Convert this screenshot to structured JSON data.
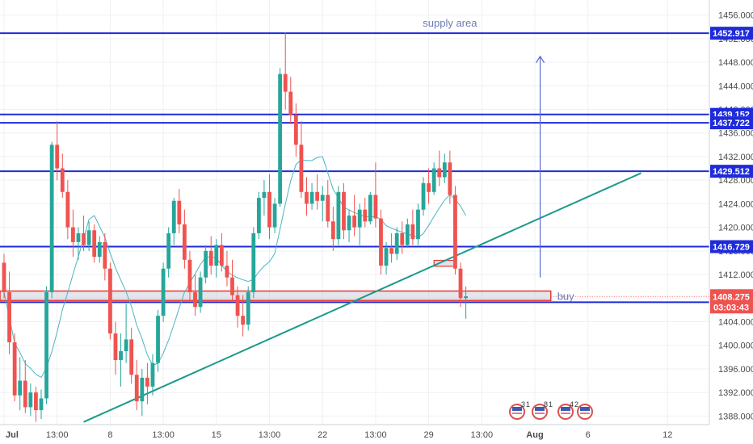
{
  "chart_data": {
    "type": "candlestick",
    "symbol_note": "",
    "y_axis": {
      "min": 1386.0,
      "max": 1458.0,
      "ticks": [
        1388.0,
        1392.0,
        1396.0,
        1400.0,
        1404.0,
        1408.0,
        1412.0,
        1416.0,
        1420.0,
        1424.0,
        1428.0,
        1432.0,
        1436.0,
        1440.0,
        1444.0,
        1448.0,
        1452.0,
        1456.0
      ],
      "tick_labels": [
        "1388.000",
        "1392.000",
        "1396.000",
        "1400.000",
        "1404.000",
        "1408.000",
        "1412.000",
        "1416.000",
        "1420.000",
        "1424.000",
        "1428.000",
        "1432.000",
        "1436.000",
        "1440.000",
        "1444.000",
        "1448.000",
        "1452.000",
        "1456.000"
      ]
    },
    "x_axis": {
      "labels": [
        "Jul",
        "13:00",
        "8",
        "13:00",
        "15",
        "13:00",
        "22",
        "13:00",
        "29",
        "13:00",
        "Aug",
        "6",
        "12"
      ],
      "bold_labels": [
        "Jul",
        "Aug"
      ],
      "bar_index": [
        0,
        10,
        20,
        30,
        40,
        50,
        60,
        70,
        80,
        90,
        100,
        110,
        125
      ]
    },
    "horizontal_levels": [
      {
        "price": 1452.917,
        "label": "1452.917",
        "color": "#1f2bd9"
      },
      {
        "price": 1439.152,
        "label": "1439.152",
        "color": "#1f2bd9"
      },
      {
        "price": 1437.722,
        "label": "1437.722",
        "color": "#1f2bd9"
      },
      {
        "price": 1429.512,
        "label": "1429.512",
        "color": "#1f2bd9"
      },
      {
        "price": 1416.729,
        "label": "1416.729",
        "color": "#1f2bd9"
      },
      {
        "price": 1407.298,
        "label": "1407.298",
        "color": "#1f2bd9"
      }
    ],
    "current_price": {
      "price": 1408.275,
      "label": "1408.275",
      "countdown": "03:03:43",
      "color": "#ef5350"
    },
    "annotations": {
      "supply_area": "supply area",
      "buy": "buy"
    },
    "trendline": {
      "from": {
        "bar": 15,
        "price": 1387.0
      },
      "to": {
        "bar": 120,
        "price": 1429.2
      },
      "color": "#1b9a8a"
    },
    "arrow": {
      "bar": 101,
      "from_price": 1411.5,
      "to_price": 1449.0,
      "color": "#5a6ccf"
    },
    "buy_zone": {
      "from_bar": 0,
      "to_bar": 103,
      "top": 1409.2,
      "bottom": 1407.6,
      "color": "#e53935"
    },
    "small_zone": {
      "from_bar": 81,
      "to_bar": 85,
      "top": 1414.4,
      "bottom": 1413.4
    },
    "event_badges": [
      "3",
      "1",
      "8",
      "1",
      "4",
      "2"
    ],
    "colors": {
      "up": "#26a69a",
      "down": "#ef5350",
      "ma": "#4ab5c4",
      "level": "#1f2bd9"
    },
    "candles": [
      [
        1414.0,
        1415.5,
        1408.0,
        1409.0
      ],
      [
        1409.0,
        1412.5,
        1398.5,
        1400.5
      ],
      [
        1400.5,
        1402.0,
        1390.5,
        1391.5
      ],
      [
        1391.5,
        1398.0,
        1389.0,
        1394.0
      ],
      [
        1394.0,
        1397.5,
        1388.5,
        1389.5
      ],
      [
        1389.5,
        1393.5,
        1388.0,
        1392.0
      ],
      [
        1392.0,
        1393.0,
        1387.0,
        1389.0
      ],
      [
        1389.0,
        1392.5,
        1387.5,
        1391.0
      ],
      [
        1391.0,
        1410.0,
        1390.0,
        1409.0
      ],
      [
        1409.0,
        1434.5,
        1408.0,
        1434.0
      ],
      [
        1434.0,
        1438.0,
        1428.0,
        1430.0
      ],
      [
        1430.0,
        1432.5,
        1425.0,
        1426.0
      ],
      [
        1426.0,
        1428.0,
        1418.0,
        1420.0
      ],
      [
        1420.0,
        1423.0,
        1415.0,
        1417.5
      ],
      [
        1417.5,
        1420.0,
        1414.5,
        1419.0
      ],
      [
        1419.0,
        1422.0,
        1416.0,
        1417.0
      ],
      [
        1417.0,
        1421.0,
        1416.0,
        1419.5
      ],
      [
        1419.5,
        1420.5,
        1414.0,
        1415.0
      ],
      [
        1415.0,
        1418.5,
        1414.0,
        1417.5
      ],
      [
        1417.5,
        1419.0,
        1411.0,
        1413.0
      ],
      [
        1413.0,
        1414.0,
        1401.0,
        1402.0
      ],
      [
        1402.0,
        1404.0,
        1395.0,
        1397.5
      ],
      [
        1397.5,
        1402.0,
        1393.0,
        1399.0
      ],
      [
        1399.0,
        1407.0,
        1397.0,
        1401.0
      ],
      [
        1401.0,
        1403.0,
        1393.5,
        1395.0
      ],
      [
        1395.0,
        1397.5,
        1389.0,
        1390.5
      ],
      [
        1390.5,
        1396.0,
        1388.0,
        1394.5
      ],
      [
        1394.5,
        1397.0,
        1390.0,
        1393.0
      ],
      [
        1393.0,
        1398.5,
        1391.5,
        1397.0
      ],
      [
        1397.0,
        1406.0,
        1395.5,
        1405.0
      ],
      [
        1405.0,
        1414.0,
        1404.0,
        1413.0
      ],
      [
        1413.0,
        1420.0,
        1411.5,
        1419.0
      ],
      [
        1419.0,
        1425.0,
        1417.0,
        1424.5
      ],
      [
        1424.5,
        1426.5,
        1419.0,
        1420.5
      ],
      [
        1420.5,
        1423.0,
        1413.0,
        1414.5
      ],
      [
        1414.5,
        1416.0,
        1407.5,
        1409.0
      ],
      [
        1409.0,
        1412.0,
        1405.0,
        1406.5
      ],
      [
        1406.5,
        1412.5,
        1405.5,
        1411.5
      ],
      [
        1411.5,
        1417.0,
        1410.5,
        1416.0
      ],
      [
        1416.0,
        1418.5,
        1412.0,
        1413.5
      ],
      [
        1413.5,
        1418.0,
        1411.5,
        1417.0
      ],
      [
        1417.0,
        1419.0,
        1412.5,
        1413.5
      ],
      [
        1413.5,
        1416.0,
        1410.0,
        1411.5
      ],
      [
        1411.5,
        1414.5,
        1407.5,
        1408.5
      ],
      [
        1408.5,
        1410.0,
        1403.0,
        1405.0
      ],
      [
        1405.0,
        1408.5,
        1401.5,
        1403.5
      ],
      [
        1403.5,
        1410.0,
        1402.5,
        1409.0
      ],
      [
        1409.0,
        1420.0,
        1408.0,
        1419.0
      ],
      [
        1419.0,
        1426.0,
        1418.0,
        1425.0
      ],
      [
        1425.0,
        1428.0,
        1422.0,
        1426.0
      ],
      [
        1426.0,
        1429.0,
        1418.0,
        1420.0
      ],
      [
        1420.0,
        1425.0,
        1419.0,
        1424.0
      ],
      [
        1424.0,
        1447.0,
        1423.5,
        1446.0
      ],
      [
        1446.0,
        1453.0,
        1440.0,
        1443.0
      ],
      [
        1443.0,
        1445.5,
        1437.5,
        1439.0
      ],
      [
        1439.0,
        1441.0,
        1432.0,
        1434.0
      ],
      [
        1434.0,
        1438.0,
        1425.0,
        1426.0
      ],
      [
        1426.0,
        1428.5,
        1422.0,
        1424.0
      ],
      [
        1424.0,
        1427.5,
        1423.0,
        1426.0
      ],
      [
        1426.0,
        1429.0,
        1423.0,
        1424.5
      ],
      [
        1424.5,
        1427.0,
        1421.0,
        1425.5
      ],
      [
        1425.5,
        1428.0,
        1420.0,
        1421.0
      ],
      [
        1421.0,
        1423.5,
        1416.0,
        1418.0
      ],
      [
        1418.0,
        1427.0,
        1417.0,
        1426.0
      ],
      [
        1426.0,
        1427.5,
        1418.0,
        1419.5
      ],
      [
        1419.5,
        1423.0,
        1417.5,
        1422.0
      ],
      [
        1422.0,
        1425.5,
        1418.5,
        1420.0
      ],
      [
        1420.0,
        1424.0,
        1417.0,
        1423.0
      ],
      [
        1423.0,
        1425.0,
        1420.0,
        1421.0
      ],
      [
        1421.0,
        1426.0,
        1420.5,
        1425.5
      ],
      [
        1425.5,
        1431.0,
        1420.0,
        1421.5
      ],
      [
        1421.5,
        1423.0,
        1412.0,
        1413.5
      ],
      [
        1413.5,
        1417.5,
        1412.0,
        1416.5
      ],
      [
        1416.5,
        1419.0,
        1414.0,
        1415.5
      ],
      [
        1415.5,
        1420.0,
        1414.5,
        1419.0
      ],
      [
        1419.0,
        1421.0,
        1415.5,
        1417.0
      ],
      [
        1417.0,
        1421.5,
        1416.5,
        1420.5
      ],
      [
        1420.5,
        1423.0,
        1417.0,
        1418.0
      ],
      [
        1418.0,
        1424.0,
        1417.0,
        1423.0
      ],
      [
        1423.0,
        1428.5,
        1422.0,
        1427.5
      ],
      [
        1427.5,
        1430.0,
        1424.0,
        1426.0
      ],
      [
        1426.0,
        1431.0,
        1425.5,
        1430.0
      ],
      [
        1430.0,
        1433.0,
        1427.0,
        1428.5
      ],
      [
        1428.5,
        1432.5,
        1427.5,
        1431.0
      ],
      [
        1431.0,
        1433.0,
        1424.0,
        1425.5
      ],
      [
        1425.5,
        1427.0,
        1412.0,
        1413.0
      ],
      [
        1413.0,
        1414.0,
        1406.5,
        1408.0
      ],
      [
        1408.0,
        1410.0,
        1404.5,
        1408.3
      ]
    ],
    "candle_bars": [
      0,
      1,
      2,
      3,
      4,
      5,
      6,
      7,
      8,
      9,
      10,
      11,
      12,
      13,
      14,
      15,
      16,
      17,
      18,
      19,
      20,
      21,
      22,
      23,
      24,
      25,
      26,
      27,
      28,
      29,
      30,
      31,
      32,
      33,
      34,
      35,
      36,
      37,
      38,
      39,
      40,
      41,
      42,
      43,
      44,
      45,
      46,
      47,
      48,
      49,
      50,
      51,
      52,
      53,
      54,
      55,
      56,
      57,
      58,
      59,
      60,
      61,
      62,
      63,
      64,
      65,
      66,
      67,
      68,
      69,
      70,
      71,
      72,
      73,
      74,
      75,
      76,
      77,
      78,
      79,
      80,
      81,
      82,
      83,
      84,
      85,
      86,
      87
    ]
  }
}
